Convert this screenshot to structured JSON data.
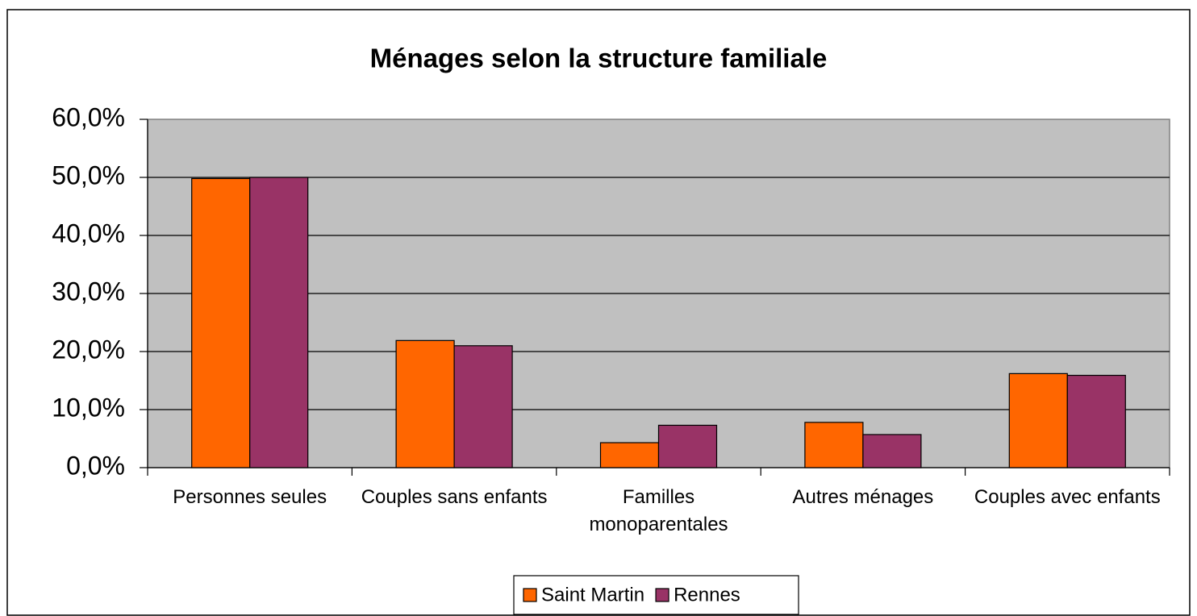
{
  "chart_data": {
    "type": "bar",
    "title": "Ménages selon la structure familiale",
    "categories": [
      "Personnes seules",
      "Couples sans enfants",
      "Familles monoparentales",
      "Autres ménages",
      "Couples avec enfants"
    ],
    "series": [
      {
        "name": "Saint Martin",
        "color": "#ff6600",
        "values": [
          49.8,
          21.9,
          4.3,
          7.8,
          16.2
        ]
      },
      {
        "name": "Rennes",
        "color": "#993366",
        "values": [
          50.0,
          21.0,
          7.3,
          5.7,
          15.9
        ]
      }
    ],
    "ylim": [
      0,
      60
    ],
    "yticks": [
      {
        "value": 0,
        "label": "0,0%"
      },
      {
        "value": 10,
        "label": "10,0%"
      },
      {
        "value": 20,
        "label": "20,0%"
      },
      {
        "value": 30,
        "label": "30,0%"
      },
      {
        "value": 40,
        "label": "40,0%"
      },
      {
        "value": 50,
        "label": "50,0%"
      },
      {
        "value": 60,
        "label": "60,0%"
      }
    ],
    "grid": true,
    "legend": "bottom"
  }
}
